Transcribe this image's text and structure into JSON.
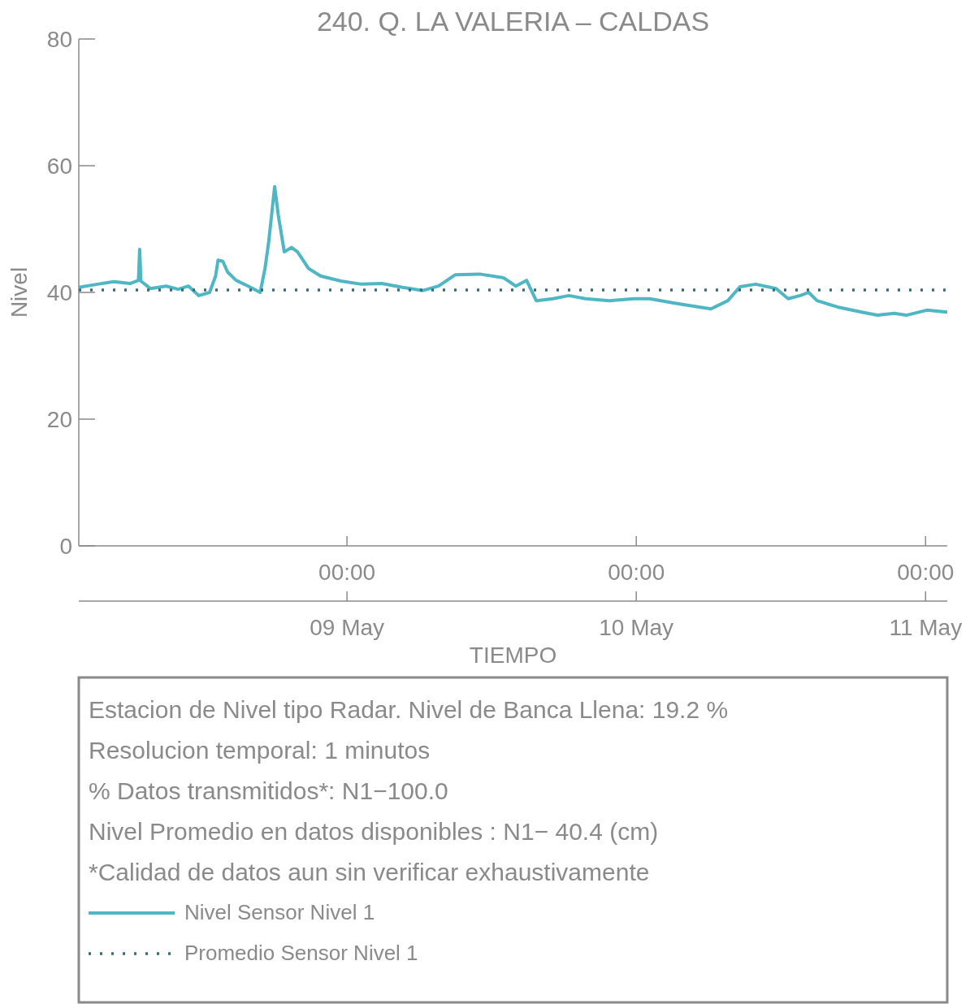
{
  "chart_data": {
    "type": "line",
    "title": "240. Q. LA VALERIA – CALDAS",
    "xlabel": "TIEMPO",
    "ylabel": "Nivel",
    "xlim": [
      "--05-08T01:45",
      "--05-11T01:48"
    ],
    "xticks": [
      {
        "value": "--05-09T00:00",
        "label": "00:00"
      },
      {
        "value": "--05-10T00:00",
        "label": "00:00"
      },
      {
        "value": "--05-11T00:00",
        "label": "00:00"
      }
    ],
    "x2lim": [
      "--05-08T01:45",
      "--05-11T01:48"
    ],
    "x2ticks": [
      {
        "value": "--05-09",
        "label": "09 May"
      },
      {
        "value": "--05-10",
        "label": "10 May"
      },
      {
        "value": "--05-11",
        "label": "11 May"
      }
    ],
    "ylim": [
      0,
      80
    ],
    "yticks": [
      0,
      20,
      40,
      60,
      80
    ],
    "grid": false,
    "legend": "bottom",
    "annotations": [
      "Estacion de Nivel tipo Radar. Nivel de Banca Llena: 19.2 %",
      "Resolucion temporal: 1 minutos",
      "% Datos transmitidos*: N1−100.0",
      "Nivel Promedio en datos disponibles : N1− 40.4 (cm)",
      "*Calidad de datos aun sin verificar exhaustivamente"
    ],
    "series": [
      {
        "name": "Nivel Sensor Nivel 1",
        "color": "#4fb6c4",
        "line_style": "solid",
        "x": [
          "--05-08T01:45",
          "--05-08T03:18",
          "--05-08T04:39",
          "--05-08T06:00",
          "--05-08T06:42",
          "--05-08T06:48",
          "--05-08T06:54",
          "--05-08T07:42",
          "--05-08T09:00",
          "--05-08T10:00",
          "--05-08T10:51",
          "--05-08T11:42",
          "--05-08T12:36",
          "--05-08T13:06",
          "--05-08T13:18",
          "--05-08T13:42",
          "--05-08T14:06",
          "--05-08T14:48",
          "--05-08T15:48",
          "--05-08T16:48",
          "--05-08T17:12",
          "--05-08T17:30",
          "--05-08T18:00",
          "--05-08T18:18",
          "--05-08T18:48",
          "--05-08T19:24",
          "--05-08T19:54",
          "--05-08T20:48",
          "--05-08T21:48",
          "--05-08T23:30",
          "--05-09T01:12",
          "--05-09T02:54",
          "--05-09T04:36",
          "--05-09T06:18",
          "--05-09T07:36",
          "--05-09T09:00",
          "--05-09T11:00",
          "--05-09T13:00",
          "--05-09T14:00",
          "--05-09T14:54",
          "--05-09T15:42",
          "--05-09T17:06",
          "--05-09T18:24",
          "--05-09T19:48",
          "--05-09T21:48",
          "--05-09T23:48",
          "--05-10T01:06",
          "--05-10T03:12",
          "--05-10T05:12",
          "--05-10T06:12",
          "--05-10T07:36",
          "--05-10T08:36",
          "--05-10T09:54",
          "--05-10T11:36",
          "--05-10T12:36",
          "--05-10T13:36",
          "--05-10T14:18",
          "--05-10T15:00",
          "--05-10T16:42",
          "--05-10T18:42",
          "--05-10T20:00",
          "--05-10T21:24",
          "--05-10T22:24",
          "--05-11T00:06",
          "--05-11T01:48"
        ],
        "values": [
          40.8,
          41.3,
          41.7,
          41.4,
          41.9,
          46.8,
          41.8,
          40.6,
          41.0,
          40.5,
          41.0,
          39.5,
          40.0,
          42.6,
          45.1,
          44.9,
          43.2,
          41.9,
          41.0,
          40.0,
          43.8,
          47.9,
          56.7,
          52.2,
          46.4,
          47.1,
          46.4,
          43.8,
          42.6,
          41.8,
          41.3,
          41.4,
          40.8,
          40.3,
          41.0,
          42.8,
          42.9,
          42.3,
          41.0,
          41.9,
          38.7,
          39.0,
          39.5,
          39.0,
          38.7,
          39.0,
          39.0,
          38.3,
          37.7,
          37.4,
          38.7,
          40.9,
          41.3,
          40.6,
          39.0,
          39.5,
          40.0,
          38.7,
          37.7,
          36.9,
          36.4,
          36.7,
          36.4,
          37.2,
          36.9
        ]
      },
      {
        "name": "Promedio Sensor Nivel 1",
        "color": "#2a6f8a",
        "line_style": "dotted",
        "x": [
          "--05-08T01:45",
          "--05-11T01:48"
        ],
        "values": [
          40.4,
          40.4
        ]
      }
    ]
  }
}
